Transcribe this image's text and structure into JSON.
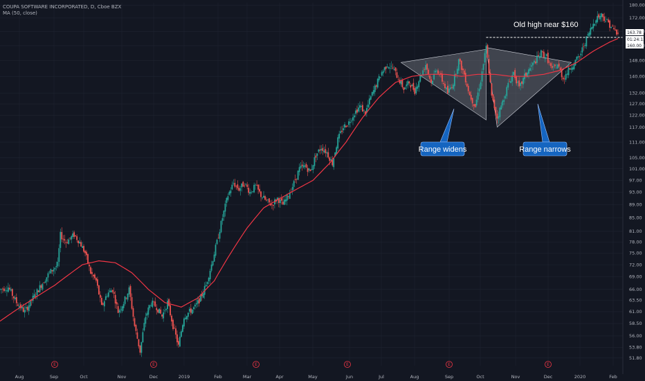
{
  "header": {
    "symbol_line": "COUPA SOFTWARE INCORPORATED, D, Cboe BZX",
    "indicator_line": "MA (50, close)"
  },
  "colors": {
    "background": "#131722",
    "grid": "#1f2431",
    "up": "#26a69a",
    "down": "#ef5350",
    "ma": "#f23645",
    "axis_text": "#b2b5be",
    "callout_fill": "#1565c0",
    "wedge_fill": "#9598a1"
  },
  "chart_data": {
    "type": "candlestick",
    "title": "COUPA SOFTWARE INCORPORATED, D, Cboe BZX",
    "y_scale": "log",
    "y_ticks": [
      "51.80",
      "53.80",
      "56.00",
      "58.50",
      "61.00",
      "63.50",
      "66.00",
      "69.00",
      "72.00",
      "75.00",
      "78.00",
      "81.00",
      "85.00",
      "89.00",
      "93.00",
      "97.00",
      "101.00",
      "105.00",
      "111.00",
      "117.00",
      "122.00",
      "127.00",
      "132.00",
      "140.00",
      "148.00",
      "156.00",
      "164.00",
      "172.00",
      "180.00"
    ],
    "x_ticks": [
      "Aug",
      "Sep",
      "Oct",
      "Nov",
      "Dec",
      "2019",
      "Feb",
      "Mar",
      "Apr",
      "May",
      "Jun",
      "Jul",
      "Aug",
      "Sep",
      "Oct",
      "Nov",
      "Dec",
      "2020",
      "Feb"
    ],
    "price_tags": [
      {
        "label": "163.78",
        "value": 163.78,
        "color": "#ffffff"
      },
      {
        "label": "01:24:13",
        "value": 161.9,
        "color": "#ffffff"
      },
      {
        "label": "160.00",
        "value": 160.0,
        "color": "#ffffff"
      }
    ],
    "ma_label": "MA (50, close)",
    "earnings_markers": [
      "E",
      "E",
      "E",
      "E",
      "E",
      "E"
    ],
    "annotations": [
      {
        "text": "Old high near $160"
      },
      {
        "text": "Range widens"
      },
      {
        "text": "Range narrows"
      }
    ],
    "price_path": [
      {
        "t": 0,
        "p": 66
      },
      {
        "t": 3,
        "p": 66.5
      },
      {
        "t": 6,
        "p": 63
      },
      {
        "t": 9,
        "p": 61
      },
      {
        "t": 12,
        "p": 64
      },
      {
        "t": 15,
        "p": 67
      },
      {
        "t": 18,
        "p": 70
      },
      {
        "t": 21,
        "p": 72
      },
      {
        "t": 22,
        "p": 80
      },
      {
        "t": 24,
        "p": 78
      },
      {
        "t": 27,
        "p": 80
      },
      {
        "t": 29,
        "p": 78
      },
      {
        "t": 31,
        "p": 75
      },
      {
        "t": 33,
        "p": 70
      },
      {
        "t": 35,
        "p": 68
      },
      {
        "t": 37,
        "p": 62
      },
      {
        "t": 39,
        "p": 65
      },
      {
        "t": 41,
        "p": 66
      },
      {
        "t": 43,
        "p": 61
      },
      {
        "t": 45,
        "p": 63
      },
      {
        "t": 47,
        "p": 66
      },
      {
        "t": 49,
        "p": 58
      },
      {
        "t": 51,
        "p": 53
      },
      {
        "t": 53,
        "p": 60
      },
      {
        "t": 55,
        "p": 63
      },
      {
        "t": 57,
        "p": 62
      },
      {
        "t": 59,
        "p": 60
      },
      {
        "t": 61,
        "p": 63
      },
      {
        "t": 63,
        "p": 58
      },
      {
        "t": 65,
        "p": 54
      },
      {
        "t": 67,
        "p": 60
      },
      {
        "t": 69,
        "p": 61
      },
      {
        "t": 71,
        "p": 62
      },
      {
        "t": 73,
        "p": 64
      },
      {
        "t": 75,
        "p": 67
      },
      {
        "t": 77,
        "p": 72
      },
      {
        "t": 79,
        "p": 78
      },
      {
        "t": 81,
        "p": 85
      },
      {
        "t": 83,
        "p": 92
      },
      {
        "t": 85,
        "p": 96
      },
      {
        "t": 87,
        "p": 94
      },
      {
        "t": 89,
        "p": 96
      },
      {
        "t": 91,
        "p": 93
      },
      {
        "t": 93,
        "p": 95
      },
      {
        "t": 95,
        "p": 92
      },
      {
        "t": 97,
        "p": 90
      },
      {
        "t": 99,
        "p": 89
      },
      {
        "t": 101,
        "p": 91
      },
      {
        "t": 103,
        "p": 89
      },
      {
        "t": 105,
        "p": 92
      },
      {
        "t": 107,
        "p": 96
      },
      {
        "t": 109,
        "p": 101
      },
      {
        "t": 111,
        "p": 102
      },
      {
        "t": 113,
        "p": 100
      },
      {
        "t": 115,
        "p": 106
      },
      {
        "t": 117,
        "p": 109
      },
      {
        "t": 119,
        "p": 107
      },
      {
        "t": 121,
        "p": 103
      },
      {
        "t": 123,
        "p": 112
      },
      {
        "t": 125,
        "p": 117
      },
      {
        "t": 127,
        "p": 119
      },
      {
        "t": 129,
        "p": 123
      },
      {
        "t": 131,
        "p": 126
      },
      {
        "t": 133,
        "p": 123
      },
      {
        "t": 135,
        "p": 130
      },
      {
        "t": 137,
        "p": 136
      },
      {
        "t": 139,
        "p": 142
      },
      {
        "t": 141,
        "p": 146
      },
      {
        "t": 143,
        "p": 144
      },
      {
        "t": 145,
        "p": 139
      },
      {
        "t": 147,
        "p": 134
      },
      {
        "t": 149,
        "p": 137
      },
      {
        "t": 151,
        "p": 133
      },
      {
        "t": 153,
        "p": 140
      },
      {
        "t": 155,
        "p": 146
      },
      {
        "t": 157,
        "p": 137
      },
      {
        "t": 159,
        "p": 144
      },
      {
        "t": 161,
        "p": 138
      },
      {
        "t": 163,
        "p": 132
      },
      {
        "t": 165,
        "p": 137
      },
      {
        "t": 167,
        "p": 148
      },
      {
        "t": 169,
        "p": 141
      },
      {
        "t": 171,
        "p": 131
      },
      {
        "t": 173,
        "p": 126
      },
      {
        "t": 175,
        "p": 138
      },
      {
        "t": 177,
        "p": 155
      },
      {
        "t": 179,
        "p": 130
      },
      {
        "t": 181,
        "p": 121
      },
      {
        "t": 183,
        "p": 128
      },
      {
        "t": 185,
        "p": 136
      },
      {
        "t": 187,
        "p": 142
      },
      {
        "t": 189,
        "p": 134
      },
      {
        "t": 191,
        "p": 140
      },
      {
        "t": 193,
        "p": 144
      },
      {
        "t": 195,
        "p": 148
      },
      {
        "t": 197,
        "p": 152
      },
      {
        "t": 199,
        "p": 150
      },
      {
        "t": 201,
        "p": 143
      },
      {
        "t": 203,
        "p": 146
      },
      {
        "t": 205,
        "p": 139
      },
      {
        "t": 207,
        "p": 143
      },
      {
        "t": 209,
        "p": 147
      },
      {
        "t": 211,
        "p": 150
      },
      {
        "t": 213,
        "p": 158
      },
      {
        "t": 215,
        "p": 165
      },
      {
        "t": 217,
        "p": 172
      },
      {
        "t": 219,
        "p": 174
      },
      {
        "t": 221,
        "p": 170
      },
      {
        "t": 223,
        "p": 166
      },
      {
        "t": 225,
        "p": 162
      }
    ],
    "ma_path": [
      {
        "t": 0,
        "p": 59
      },
      {
        "t": 10,
        "p": 63
      },
      {
        "t": 20,
        "p": 67
      },
      {
        "t": 30,
        "p": 72
      },
      {
        "t": 36,
        "p": 73
      },
      {
        "t": 42,
        "p": 72.5
      },
      {
        "t": 48,
        "p": 70
      },
      {
        "t": 54,
        "p": 66
      },
      {
        "t": 60,
        "p": 63
      },
      {
        "t": 66,
        "p": 62
      },
      {
        "t": 72,
        "p": 64
      },
      {
        "t": 78,
        "p": 68
      },
      {
        "t": 84,
        "p": 75
      },
      {
        "t": 90,
        "p": 82
      },
      {
        "t": 96,
        "p": 88
      },
      {
        "t": 102,
        "p": 91
      },
      {
        "t": 108,
        "p": 94
      },
      {
        "t": 114,
        "p": 97
      },
      {
        "t": 120,
        "p": 103
      },
      {
        "t": 126,
        "p": 111
      },
      {
        "t": 132,
        "p": 121
      },
      {
        "t": 138,
        "p": 130
      },
      {
        "t": 144,
        "p": 137
      },
      {
        "t": 150,
        "p": 140
      },
      {
        "t": 156,
        "p": 141
      },
      {
        "t": 162,
        "p": 141
      },
      {
        "t": 168,
        "p": 140
      },
      {
        "t": 174,
        "p": 141
      },
      {
        "t": 180,
        "p": 141
      },
      {
        "t": 186,
        "p": 140
      },
      {
        "t": 192,
        "p": 140
      },
      {
        "t": 198,
        "p": 141
      },
      {
        "t": 204,
        "p": 143
      },
      {
        "t": 210,
        "p": 147
      },
      {
        "t": 216,
        "p": 153
      },
      {
        "t": 222,
        "p": 158
      },
      {
        "t": 225,
        "p": 160
      }
    ]
  }
}
